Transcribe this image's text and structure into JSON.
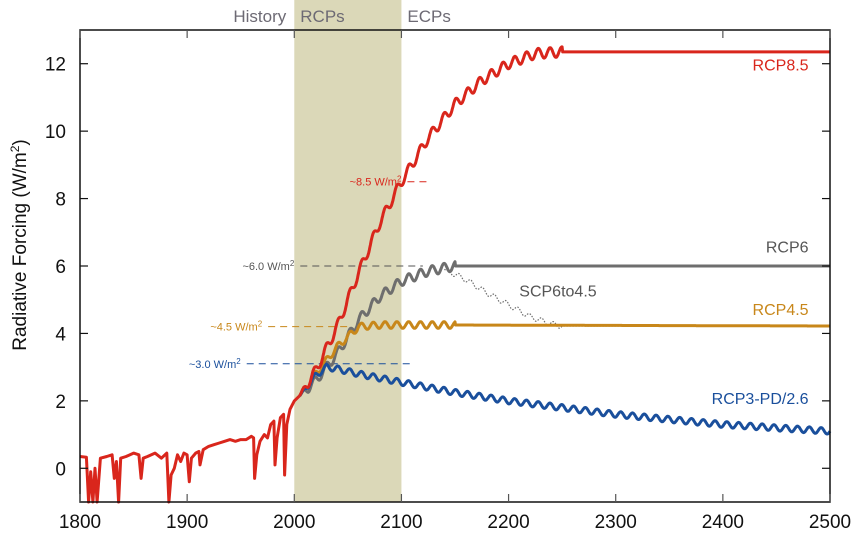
{
  "chart_data": {
    "type": "line",
    "title": "",
    "xlabel": "",
    "ylabel": "Radiative Forcing (W/m²)",
    "ylabel_parts": {
      "main": "Radiative Forcing (W/m",
      "sup": "2",
      "close": ")"
    },
    "xlim": [
      1800,
      2500
    ],
    "ylim": [
      -1,
      13
    ],
    "grid": false,
    "x_ticks": [
      1800,
      1900,
      2000,
      2100,
      2200,
      2300,
      2400,
      2500
    ],
    "x_tick_labels": [
      "1800",
      "1900",
      "2000",
      "2100",
      "2200",
      "2300",
      "2400",
      "2500"
    ],
    "y_ticks": [
      0,
      2,
      4,
      6,
      8,
      10,
      12
    ],
    "y_tick_labels": [
      "0",
      "2",
      "4",
      "6",
      "8",
      "10",
      "12"
    ],
    "periods": [
      {
        "name": "History",
        "start": 1800,
        "end": 2000,
        "shaded": false
      },
      {
        "name": "RCPs",
        "start": 2000,
        "end": 2100,
        "shaded": true,
        "color": "#dbd8b8"
      },
      {
        "name": "ECPs",
        "start": 2100,
        "end": 2500,
        "shaded": false
      }
    ],
    "history": {
      "name": "Historical",
      "color": "#d9261c",
      "points": [
        [
          1800,
          0.35
        ],
        [
          1806,
          0.33
        ],
        [
          1808,
          -1.0
        ],
        [
          1810,
          -0.1
        ],
        [
          1812,
          -1.0
        ],
        [
          1814,
          0.0
        ],
        [
          1816,
          -1.0
        ],
        [
          1819,
          0.3
        ],
        [
          1825,
          0.35
        ],
        [
          1830,
          0.4
        ],
        [
          1832,
          -0.3
        ],
        [
          1834,
          0.2
        ],
        [
          1836,
          -1.0
        ],
        [
          1838,
          0.3
        ],
        [
          1843,
          0.35
        ],
        [
          1850,
          0.45
        ],
        [
          1855,
          0.4
        ],
        [
          1857,
          -0.3
        ],
        [
          1859,
          0.3
        ],
        [
          1863,
          0.35
        ],
        [
          1870,
          0.45
        ],
        [
          1876,
          0.3
        ],
        [
          1881,
          0.45
        ],
        [
          1883,
          -1.0
        ],
        [
          1885,
          -0.2
        ],
        [
          1888,
          0.0
        ],
        [
          1891,
          0.4
        ],
        [
          1894,
          0.2
        ],
        [
          1897,
          0.45
        ],
        [
          1900,
          0.4
        ],
        [
          1902,
          -0.4
        ],
        [
          1904,
          0.3
        ],
        [
          1908,
          0.45
        ],
        [
          1911,
          0.5
        ],
        [
          1912,
          0.1
        ],
        [
          1915,
          0.55
        ],
        [
          1920,
          0.65
        ],
        [
          1925,
          0.7
        ],
        [
          1930,
          0.75
        ],
        [
          1935,
          0.8
        ],
        [
          1940,
          0.85
        ],
        [
          1945,
          0.8
        ],
        [
          1950,
          0.85
        ],
        [
          1955,
          0.85
        ],
        [
          1960,
          0.95
        ],
        [
          1962,
          0.9
        ],
        [
          1963,
          -0.3
        ],
        [
          1965,
          0.4
        ],
        [
          1968,
          0.8
        ],
        [
          1972,
          1.0
        ],
        [
          1975,
          0.9
        ],
        [
          1978,
          1.3
        ],
        [
          1981,
          1.4
        ],
        [
          1982,
          0.1
        ],
        [
          1984,
          0.9
        ],
        [
          1987,
          1.5
        ],
        [
          1990,
          1.6
        ],
        [
          1991,
          -0.2
        ],
        [
          1993,
          1.3
        ],
        [
          1996,
          1.75
        ],
        [
          2000,
          2.0
        ],
        [
          2005,
          2.15
        ]
      ]
    },
    "series": [
      {
        "name": "RCP8.5",
        "label": "RCP8.5",
        "color": "#d9261c",
        "points": [
          [
            2005,
            2.15
          ],
          [
            2020,
            2.9
          ],
          [
            2040,
            4.2
          ],
          [
            2060,
            5.8
          ],
          [
            2080,
            7.3
          ],
          [
            2100,
            8.5
          ],
          [
            2125,
            9.8
          ],
          [
            2150,
            10.8
          ],
          [
            2175,
            11.5
          ],
          [
            2200,
            12.0
          ],
          [
            2225,
            12.3
          ],
          [
            2250,
            12.35
          ],
          [
            2500,
            12.35
          ]
        ],
        "wiggle_until": 2250,
        "wiggle_amp": 0.15
      },
      {
        "name": "RCP6",
        "label": "RCP6",
        "color": "#6e6e6e",
        "points": [
          [
            2005,
            2.15
          ],
          [
            2020,
            2.6
          ],
          [
            2040,
            3.4
          ],
          [
            2060,
            4.4
          ],
          [
            2080,
            5.1
          ],
          [
            2100,
            5.55
          ],
          [
            2125,
            5.85
          ],
          [
            2150,
            6.0
          ],
          [
            2500,
            6.0
          ]
        ],
        "wiggle_until": 2150,
        "wiggle_amp": 0.14
      },
      {
        "name": "RCP4.5",
        "label": "RCP4.5",
        "color": "#c8871a",
        "points": [
          [
            2005,
            2.15
          ],
          [
            2020,
            2.8
          ],
          [
            2040,
            3.6
          ],
          [
            2060,
            4.2
          ],
          [
            2080,
            4.25
          ],
          [
            2100,
            4.25
          ],
          [
            2150,
            4.25
          ],
          [
            2500,
            4.22
          ]
        ],
        "wiggle_until": 2150,
        "wiggle_amp": 0.1
      },
      {
        "name": "RCP3-PD/2.6",
        "label": "RCP3-PD/2.6",
        "color": "#1a4f9c",
        "points": [
          [
            2005,
            2.15
          ],
          [
            2020,
            2.75
          ],
          [
            2030,
            3.0
          ],
          [
            2040,
            2.95
          ],
          [
            2060,
            2.8
          ],
          [
            2100,
            2.55
          ],
          [
            2150,
            2.25
          ],
          [
            2200,
            2.0
          ],
          [
            2250,
            1.8
          ],
          [
            2300,
            1.6
          ],
          [
            2350,
            1.45
          ],
          [
            2400,
            1.3
          ],
          [
            2450,
            1.2
          ],
          [
            2500,
            1.1
          ]
        ],
        "wiggle_until": 2500,
        "wiggle_amp": 0.09
      },
      {
        "name": "SCP6to4.5",
        "label": "SCP6to4.5",
        "color": "#6e6e6e",
        "dotted": true,
        "points": [
          [
            2140,
            5.9
          ],
          [
            2160,
            5.6
          ],
          [
            2180,
            5.2
          ],
          [
            2200,
            4.85
          ],
          [
            2220,
            4.5
          ],
          [
            2240,
            4.28
          ],
          [
            2250,
            4.22
          ],
          [
            2500,
            4.22
          ]
        ],
        "wiggle_until": 2250,
        "wiggle_amp": 0.08
      }
    ],
    "annotations": [
      {
        "text": "~8.5 W/m²",
        "main": "~8.5 W/m",
        "sup": "2",
        "value": 8.5,
        "from": 2100,
        "to": 2125,
        "color": "#d9261c"
      },
      {
        "text": "~6.0 W/m²",
        "main": "~6.0 W/m",
        "sup": "2",
        "value": 6.0,
        "from": 2000,
        "to": 2120,
        "color": "#555555"
      },
      {
        "text": "~4.5 W/m²",
        "main": "~4.5 W/m",
        "sup": "2",
        "value": 4.2,
        "from": 1970,
        "to": 2050,
        "color": "#c8871a"
      },
      {
        "text": "~3.0 W/m²",
        "main": "~3.0 W/m",
        "sup": "2",
        "value": 3.1,
        "from": 1950,
        "to": 2110,
        "color": "#1a4f9c"
      }
    ],
    "series_labels": [
      {
        "text": "RCP8.5",
        "color": "#d9261c",
        "year": 2480,
        "value": 11.8
      },
      {
        "text": "RCP6",
        "color": "#555555",
        "year": 2480,
        "value": 6.4
      },
      {
        "text": "SCP6to4.5",
        "color": "#555555",
        "year": 2210,
        "value": 5.1
      },
      {
        "text": "RCP4.5",
        "color": "#c8871a",
        "year": 2480,
        "value": 4.55
      },
      {
        "text": "RCP3-PD/2.6",
        "color": "#1a4f9c",
        "year": 2480,
        "value": 1.9
      }
    ]
  }
}
